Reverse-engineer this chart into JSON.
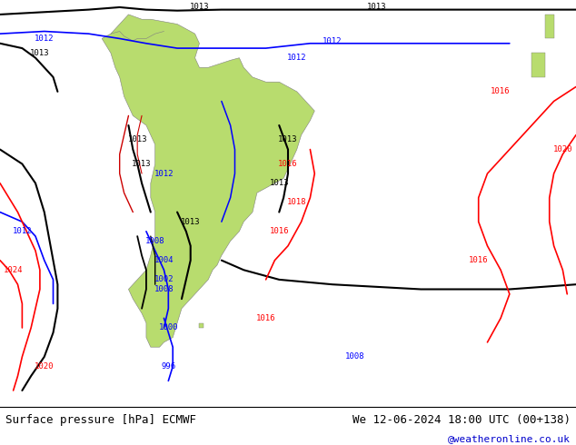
{
  "title_left": "Surface pressure [hPa] ECMWF",
  "title_right": "We 12-06-2024 18:00 UTC (00+138)",
  "watermark": "@weatheronline.co.uk",
  "bg_color": "#c8c8d4",
  "land_color": "#b8dc6e",
  "ocean_color": "#c8c8d4",
  "fig_w": 6.34,
  "fig_h": 4.9,
  "dpi": 100,
  "map_extent": [
    -105,
    25,
    -68,
    16
  ],
  "lon0": -105,
  "lon1": 25,
  "lat0": -68,
  "lat1": 16
}
